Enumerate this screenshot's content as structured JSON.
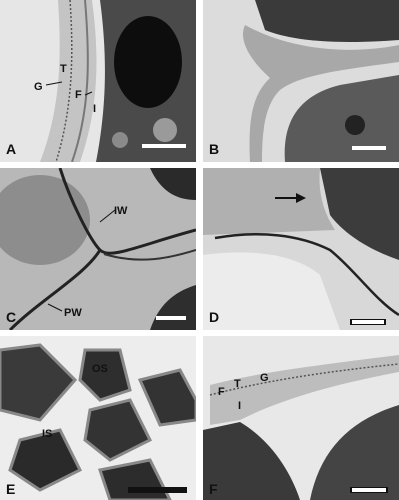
{
  "panels": [
    {
      "letter": "A",
      "labels": [
        "G",
        "T",
        "F",
        "I"
      ]
    },
    {
      "letter": "B",
      "labels": []
    },
    {
      "letter": "C",
      "labels": [
        "IW",
        "PW"
      ]
    },
    {
      "letter": "D",
      "labels": []
    },
    {
      "letter": "E",
      "labels": [
        "OS",
        "IS"
      ]
    },
    {
      "letter": "F",
      "labels": [
        "F",
        "T",
        "G",
        "I"
      ]
    }
  ]
}
